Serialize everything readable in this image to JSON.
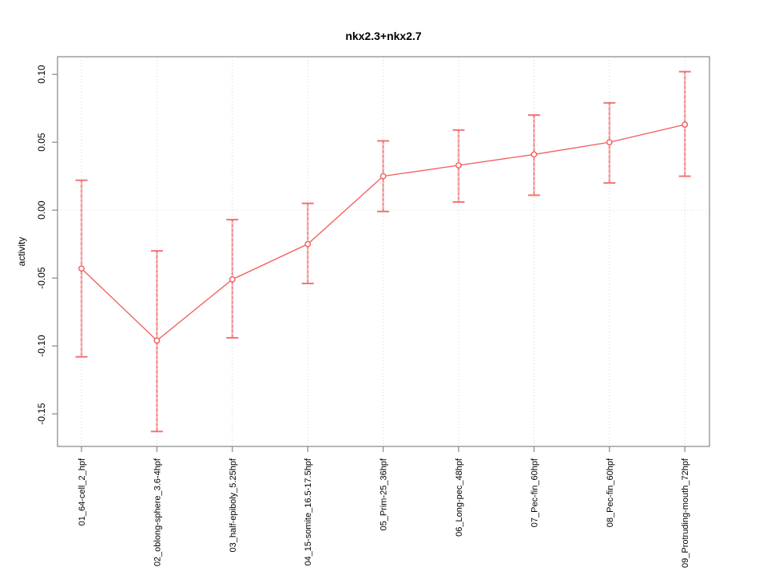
{
  "figure": {
    "background": "#ffffff"
  },
  "chart_data": {
    "type": "line",
    "title": "nkx2.3+nkx2.7",
    "xlabel": "",
    "ylabel": "activity",
    "marker": "open-circle",
    "legend": "none",
    "categories": [
      "01_64-cell_2_hpf",
      "02_oblong-sphere_3.6-4hpf",
      "03_half-epiboly_5.25hpf",
      "04_15-somite_16.5-17.5hpf",
      "05_Prim-25_36hpf",
      "06_Long-pec_48hpf",
      "07_Pec-fin_60hpf",
      "08_Pec-fin_60hpf",
      "09_Protruding-mouth_72hpf"
    ],
    "series": [
      {
        "name": "activity",
        "values": [
          -0.043,
          -0.096,
          -0.051,
          -0.025,
          0.025,
          0.033,
          0.041,
          0.05,
          0.063
        ],
        "error_lower": [
          -0.108,
          -0.163,
          -0.094,
          -0.054,
          -0.001,
          0.006,
          0.011,
          0.02,
          0.025
        ],
        "error_upper": [
          0.022,
          -0.03,
          -0.007,
          0.005,
          0.051,
          0.059,
          0.07,
          0.079,
          0.102
        ]
      }
    ],
    "ylim": [
      -0.174,
      0.113
    ],
    "yticks": [
      0.1,
      0.05,
      0.0,
      -0.05,
      -0.1,
      -0.15
    ],
    "ytick_labels": [
      "0.10",
      "0.05",
      "0.00",
      "-0.05",
      "-0.10",
      "-0.15"
    ],
    "grid": {
      "vertical": "dotted line at each category",
      "horizontal": "dotted line at zero only"
    },
    "colors": {
      "series": "#f15c5c",
      "grid": "#d6d6d6",
      "axis": "#878787",
      "text": "#000000"
    }
  }
}
